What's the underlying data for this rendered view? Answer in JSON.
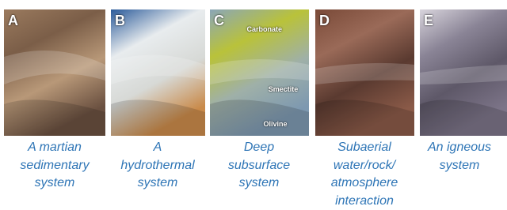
{
  "panels": [
    {
      "letter": "A",
      "caption": [
        "A martian",
        "sedimentary",
        "system"
      ]
    },
    {
      "letter": "B",
      "caption": [
        "A",
        "hydrothermal",
        "system"
      ]
    },
    {
      "letter": "C",
      "caption": [
        "Deep",
        "subsurface",
        "system"
      ],
      "image_labels": [
        "Carbonate",
        "Smectite",
        "Olivine"
      ]
    },
    {
      "letter": "D",
      "caption": [
        "Subaerial",
        "water/rock/",
        "atmosphere",
        "interaction"
      ]
    },
    {
      "letter": "E",
      "caption": [
        "An igneous",
        "system"
      ]
    }
  ]
}
